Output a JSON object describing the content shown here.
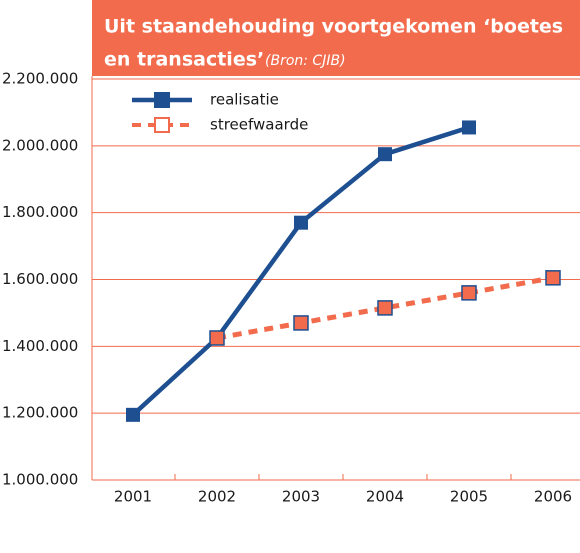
{
  "chart_data": {
    "type": "line",
    "title": "Uit staandehouding voortgekomen ‘boetes",
    "title_line2": "en transacties’",
    "subtitle": "(Bron: CJIB)",
    "categories": [
      "2001",
      "2002",
      "2003",
      "2004",
      "2005",
      "2006"
    ],
    "series": [
      {
        "name": "realisatie",
        "color": "#1d4f91",
        "values": [
          1195000,
          1425000,
          1770000,
          1975000,
          2055000,
          null
        ]
      },
      {
        "name": "streefwaarde",
        "color": "#f26b4c",
        "values": [
          null,
          1425000,
          1470000,
          1515000,
          1560000,
          1605000
        ]
      }
    ],
    "ylim": [
      1000000,
      2200000
    ],
    "yticks": [
      {
        "value": 1000000,
        "label": "1.000.000"
      },
      {
        "value": 1200000,
        "label": "1.200.000"
      },
      {
        "value": 1400000,
        "label": "1.400.000"
      },
      {
        "value": 1600000,
        "label": "1.600.000"
      },
      {
        "value": 1800000,
        "label": "1.800.000"
      },
      {
        "value": 2000000,
        "label": "2.000.000"
      },
      {
        "value": 2200000,
        "label": "2.200.000"
      }
    ],
    "grid": true
  }
}
